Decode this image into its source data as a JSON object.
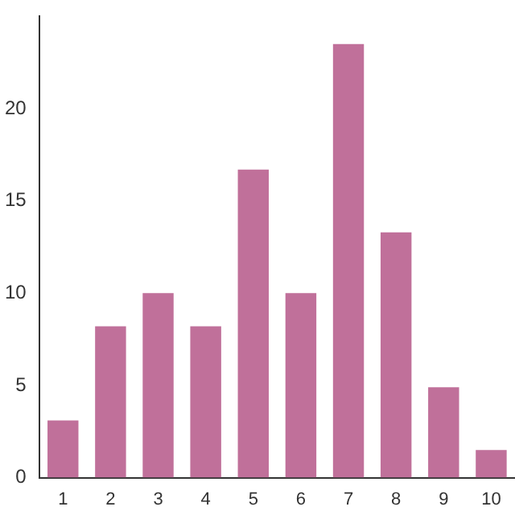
{
  "chart_data": {
    "type": "bar",
    "categories": [
      "1",
      "2",
      "3",
      "4",
      "5",
      "6",
      "7",
      "8",
      "9",
      "10"
    ],
    "values": [
      3.1,
      8.2,
      10,
      8.2,
      16.7,
      10,
      23.5,
      13.3,
      4.9,
      1.5
    ],
    "color": "#c0709a",
    "ylim": [
      0,
      25
    ],
    "yticks": [
      0,
      5,
      10,
      15,
      20
    ],
    "grid": false,
    "legend": false
  }
}
